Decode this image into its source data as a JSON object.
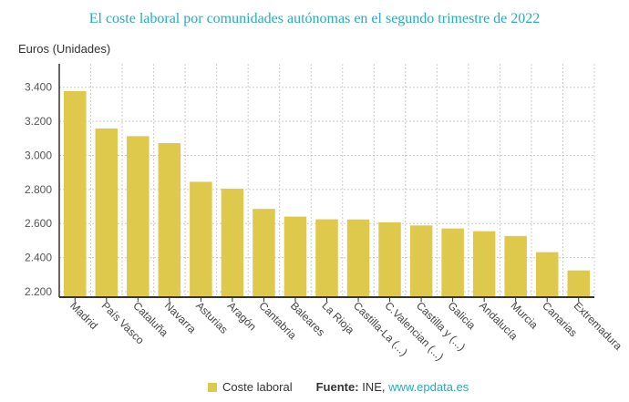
{
  "chart_data": {
    "type": "bar",
    "title": "El coste laboral por comunidades autónomas en el segundo trimestre de 2022",
    "ylabel": "Euros (Unidades)",
    "xlabel": "",
    "categories": [
      "Madrid",
      "País Vasco",
      "Cataluña",
      "Navarra",
      "Asturias",
      "Aragón",
      "Cantabria",
      "Baleares",
      "La Rioja",
      "Castilla-La (...)",
      "C.Valencian (...)",
      "Castilla y (...)",
      "Galicia",
      "Andalucía",
      "Murcia",
      "Canarias",
      "Extremadura"
    ],
    "series": [
      {
        "name": "Coste laboral",
        "values": [
          3377,
          3158,
          3113,
          3072,
          2845,
          2805,
          2686,
          2641,
          2625,
          2624,
          2607,
          2589,
          2571,
          2555,
          2527,
          2432,
          2325
        ]
      }
    ],
    "ylim": [
      2200,
      3450
    ],
    "yticks": [
      2200,
      2400,
      2600,
      2800,
      3000,
      3200,
      3400
    ],
    "ytick_labels": [
      "2.200",
      "2.400",
      "2.600",
      "2.800",
      "3.000",
      "3.200",
      "3.400"
    ],
    "grid": true,
    "legend_position": "bottom",
    "color": "#dfc94c"
  },
  "source": {
    "label": "Fuente:",
    "text": "INE,",
    "link": "www.epdata.es"
  }
}
